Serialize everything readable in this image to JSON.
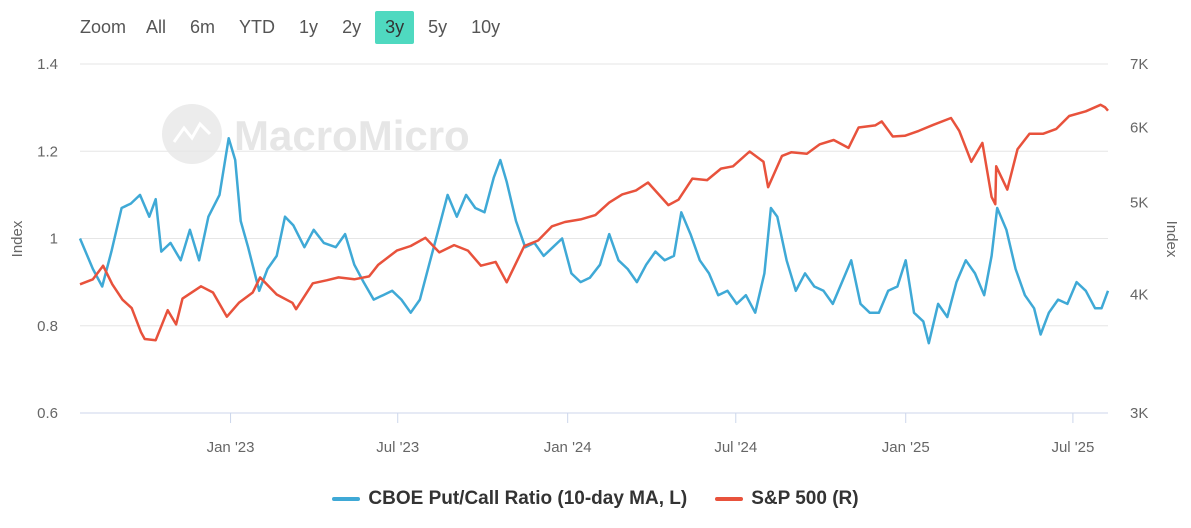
{
  "zoom": {
    "label": "Zoom",
    "options": [
      "All",
      "6m",
      "YTD",
      "1y",
      "2y",
      "3y",
      "5y",
      "10y"
    ],
    "active": "3y",
    "active_color": "#4fd9c0"
  },
  "watermark": "MacroMicro",
  "chart_data": {
    "type": "line",
    "xlim": [
      "2022-07-22",
      "2025-08-08"
    ],
    "x_ticks": [
      "Jan '23",
      "Jul '23",
      "Jan '24",
      "Jul '24",
      "Jan '25",
      "Jul '25"
    ],
    "x_tick_dates": [
      "2023-01-01",
      "2023-07-01",
      "2024-01-01",
      "2024-07-01",
      "2025-01-01",
      "2025-07-01"
    ],
    "y_left": {
      "label": "Index",
      "ylim": [
        0.6,
        1.4
      ],
      "ticks": [
        "0.6",
        "0.8",
        "1",
        "1.2",
        "1.4"
      ],
      "tick_values": [
        0.6,
        0.8,
        1.0,
        1.2,
        1.4
      ]
    },
    "y_right": {
      "label": "Index",
      "scale": "log",
      "ylim": [
        3000,
        7000
      ],
      "ticks": [
        "3K",
        "4K",
        "5K",
        "6K",
        "7K"
      ],
      "tick_values": [
        3000,
        4000,
        5000,
        6000,
        7000
      ]
    },
    "grid": true,
    "legend_position": "bottom",
    "series": [
      {
        "name": "CBOE Put/Call Ratio (10-day MA, L)",
        "axis": "left",
        "color": "#3fa9d6",
        "points": [
          [
            "2022-07-22",
            1.0
          ],
          [
            "2022-08-05",
            0.93
          ],
          [
            "2022-08-15",
            0.89
          ],
          [
            "2022-08-25",
            0.97
          ],
          [
            "2022-09-05",
            1.07
          ],
          [
            "2022-09-15",
            1.08
          ],
          [
            "2022-09-25",
            1.1
          ],
          [
            "2022-10-05",
            1.05
          ],
          [
            "2022-10-12",
            1.09
          ],
          [
            "2022-10-18",
            0.97
          ],
          [
            "2022-10-28",
            0.99
          ],
          [
            "2022-11-08",
            0.95
          ],
          [
            "2022-11-18",
            1.02
          ],
          [
            "2022-11-28",
            0.95
          ],
          [
            "2022-12-08",
            1.05
          ],
          [
            "2022-12-20",
            1.1
          ],
          [
            "2022-12-30",
            1.23
          ],
          [
            "2023-01-06",
            1.18
          ],
          [
            "2023-01-12",
            1.04
          ],
          [
            "2023-01-20",
            0.98
          ],
          [
            "2023-02-01",
            0.88
          ],
          [
            "2023-02-10",
            0.93
          ],
          [
            "2023-02-20",
            0.96
          ],
          [
            "2023-03-01",
            1.05
          ],
          [
            "2023-03-10",
            1.03
          ],
          [
            "2023-03-22",
            0.98
          ],
          [
            "2023-04-01",
            1.02
          ],
          [
            "2023-04-12",
            0.99
          ],
          [
            "2023-04-25",
            0.98
          ],
          [
            "2023-05-05",
            1.01
          ],
          [
            "2023-05-15",
            0.94
          ],
          [
            "2023-05-25",
            0.9
          ],
          [
            "2023-06-05",
            0.86
          ],
          [
            "2023-06-15",
            0.87
          ],
          [
            "2023-06-25",
            0.88
          ],
          [
            "2023-07-05",
            0.86
          ],
          [
            "2023-07-15",
            0.83
          ],
          [
            "2023-07-25",
            0.86
          ],
          [
            "2023-08-04",
            0.94
          ],
          [
            "2023-08-14",
            1.02
          ],
          [
            "2023-08-24",
            1.1
          ],
          [
            "2023-09-03",
            1.05
          ],
          [
            "2023-09-13",
            1.1
          ],
          [
            "2023-09-23",
            1.07
          ],
          [
            "2023-10-03",
            1.06
          ],
          [
            "2023-10-13",
            1.14
          ],
          [
            "2023-10-20",
            1.18
          ],
          [
            "2023-10-27",
            1.13
          ],
          [
            "2023-11-06",
            1.04
          ],
          [
            "2023-11-16",
            0.98
          ],
          [
            "2023-11-26",
            0.99
          ],
          [
            "2023-12-06",
            0.96
          ],
          [
            "2023-12-16",
            0.98
          ],
          [
            "2023-12-26",
            1.0
          ],
          [
            "2024-01-05",
            0.92
          ],
          [
            "2024-01-15",
            0.9
          ],
          [
            "2024-01-25",
            0.91
          ],
          [
            "2024-02-05",
            0.94
          ],
          [
            "2024-02-15",
            1.01
          ],
          [
            "2024-02-25",
            0.95
          ],
          [
            "2024-03-06",
            0.93
          ],
          [
            "2024-03-16",
            0.9
          ],
          [
            "2024-03-26",
            0.94
          ],
          [
            "2024-04-05",
            0.97
          ],
          [
            "2024-04-15",
            0.95
          ],
          [
            "2024-04-25",
            0.96
          ],
          [
            "2024-05-03",
            1.06
          ],
          [
            "2024-05-13",
            1.01
          ],
          [
            "2024-05-23",
            0.95
          ],
          [
            "2024-06-02",
            0.92
          ],
          [
            "2024-06-12",
            0.87
          ],
          [
            "2024-06-22",
            0.88
          ],
          [
            "2024-07-02",
            0.85
          ],
          [
            "2024-07-12",
            0.87
          ],
          [
            "2024-07-22",
            0.83
          ],
          [
            "2024-08-01",
            0.92
          ],
          [
            "2024-08-08",
            1.07
          ],
          [
            "2024-08-15",
            1.05
          ],
          [
            "2024-08-25",
            0.95
          ],
          [
            "2024-09-04",
            0.88
          ],
          [
            "2024-09-14",
            0.92
          ],
          [
            "2024-09-24",
            0.89
          ],
          [
            "2024-10-04",
            0.88
          ],
          [
            "2024-10-14",
            0.85
          ],
          [
            "2024-10-24",
            0.9
          ],
          [
            "2024-11-03",
            0.95
          ],
          [
            "2024-11-13",
            0.85
          ],
          [
            "2024-11-23",
            0.83
          ],
          [
            "2024-12-03",
            0.83
          ],
          [
            "2024-12-13",
            0.88
          ],
          [
            "2024-12-23",
            0.89
          ],
          [
            "2025-01-01",
            0.95
          ],
          [
            "2025-01-10",
            0.83
          ],
          [
            "2025-01-20",
            0.81
          ],
          [
            "2025-01-26",
            0.76
          ],
          [
            "2025-02-05",
            0.85
          ],
          [
            "2025-02-15",
            0.82
          ],
          [
            "2025-02-25",
            0.9
          ],
          [
            "2025-03-07",
            0.95
          ],
          [
            "2025-03-17",
            0.92
          ],
          [
            "2025-03-27",
            0.87
          ],
          [
            "2025-04-04",
            0.96
          ],
          [
            "2025-04-10",
            1.07
          ],
          [
            "2025-04-20",
            1.02
          ],
          [
            "2025-04-30",
            0.93
          ],
          [
            "2025-05-10",
            0.87
          ],
          [
            "2025-05-20",
            0.84
          ],
          [
            "2025-05-27",
            0.78
          ],
          [
            "2025-06-05",
            0.83
          ],
          [
            "2025-06-15",
            0.86
          ],
          [
            "2025-06-25",
            0.85
          ],
          [
            "2025-07-05",
            0.9
          ],
          [
            "2025-07-15",
            0.88
          ],
          [
            "2025-07-25",
            0.84
          ],
          [
            "2025-08-01",
            0.84
          ],
          [
            "2025-08-08",
            0.88
          ]
        ]
      },
      {
        "name": "S&P 500 (R)",
        "axis": "right",
        "color": "#e8523c",
        "points": [
          [
            "2022-07-22",
            4100
          ],
          [
            "2022-08-05",
            4150
          ],
          [
            "2022-08-16",
            4290
          ],
          [
            "2022-08-26",
            4100
          ],
          [
            "2022-09-06",
            3950
          ],
          [
            "2022-09-16",
            3870
          ],
          [
            "2022-09-26",
            3650
          ],
          [
            "2022-09-30",
            3590
          ],
          [
            "2022-10-12",
            3580
          ],
          [
            "2022-10-25",
            3850
          ],
          [
            "2022-11-03",
            3720
          ],
          [
            "2022-11-10",
            3960
          ],
          [
            "2022-11-30",
            4080
          ],
          [
            "2022-12-13",
            4020
          ],
          [
            "2022-12-28",
            3790
          ],
          [
            "2023-01-10",
            3920
          ],
          [
            "2023-01-25",
            4020
          ],
          [
            "2023-02-02",
            4170
          ],
          [
            "2023-02-20",
            4000
          ],
          [
            "2023-03-09",
            3920
          ],
          [
            "2023-03-13",
            3860
          ],
          [
            "2023-03-31",
            4110
          ],
          [
            "2023-04-15",
            4140
          ],
          [
            "2023-04-28",
            4170
          ],
          [
            "2023-05-15",
            4150
          ],
          [
            "2023-05-31",
            4180
          ],
          [
            "2023-06-10",
            4300
          ],
          [
            "2023-06-30",
            4450
          ],
          [
            "2023-07-15",
            4500
          ],
          [
            "2023-07-31",
            4590
          ],
          [
            "2023-08-15",
            4430
          ],
          [
            "2023-08-31",
            4510
          ],
          [
            "2023-09-15",
            4450
          ],
          [
            "2023-09-29",
            4290
          ],
          [
            "2023-10-15",
            4330
          ],
          [
            "2023-10-27",
            4120
          ],
          [
            "2023-11-15",
            4500
          ],
          [
            "2023-11-30",
            4560
          ],
          [
            "2023-12-15",
            4720
          ],
          [
            "2023-12-29",
            4770
          ],
          [
            "2024-01-15",
            4800
          ],
          [
            "2024-01-31",
            4850
          ],
          [
            "2024-02-15",
            5000
          ],
          [
            "2024-02-29",
            5100
          ],
          [
            "2024-03-15",
            5150
          ],
          [
            "2024-03-28",
            5250
          ],
          [
            "2024-04-19",
            4970
          ],
          [
            "2024-04-30",
            5035
          ],
          [
            "2024-05-15",
            5300
          ],
          [
            "2024-05-31",
            5280
          ],
          [
            "2024-06-15",
            5430
          ],
          [
            "2024-06-28",
            5460
          ],
          [
            "2024-07-16",
            5660
          ],
          [
            "2024-07-31",
            5520
          ],
          [
            "2024-08-05",
            5190
          ],
          [
            "2024-08-20",
            5600
          ],
          [
            "2024-08-30",
            5650
          ],
          [
            "2024-09-16",
            5630
          ],
          [
            "2024-09-30",
            5760
          ],
          [
            "2024-10-15",
            5820
          ],
          [
            "2024-10-31",
            5710
          ],
          [
            "2024-11-11",
            6000
          ],
          [
            "2024-11-29",
            6030
          ],
          [
            "2024-12-06",
            6090
          ],
          [
            "2024-12-18",
            5870
          ],
          [
            "2024-12-31",
            5880
          ],
          [
            "2025-01-15",
            5950
          ],
          [
            "2025-01-31",
            6040
          ],
          [
            "2025-02-19",
            6140
          ],
          [
            "2025-02-28",
            5950
          ],
          [
            "2025-03-13",
            5520
          ],
          [
            "2025-03-25",
            5780
          ],
          [
            "2025-04-04",
            5070
          ],
          [
            "2025-04-08",
            4980
          ],
          [
            "2025-04-09",
            5460
          ],
          [
            "2025-04-21",
            5160
          ],
          [
            "2025-05-02",
            5690
          ],
          [
            "2025-05-15",
            5910
          ],
          [
            "2025-05-30",
            5910
          ],
          [
            "2025-06-13",
            5980
          ],
          [
            "2025-06-27",
            6170
          ],
          [
            "2025-07-15",
            6240
          ],
          [
            "2025-07-31",
            6340
          ],
          [
            "2025-08-05",
            6300
          ],
          [
            "2025-08-08",
            6250
          ]
        ]
      }
    ]
  }
}
